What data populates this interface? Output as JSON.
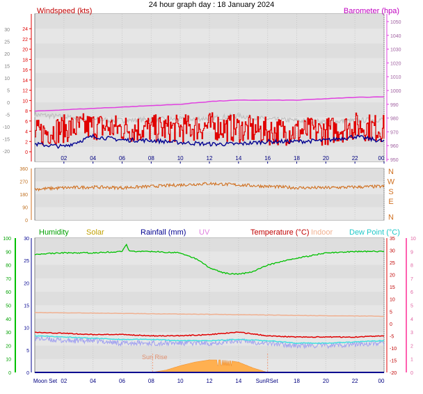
{
  "title": "24 hour graph day : 18 January 2024",
  "chart_data": [
    {
      "type": "line",
      "id": "wind-baro",
      "x_ticks": [
        "02",
        "04",
        "06",
        "08",
        "10",
        "12",
        "14",
        "16",
        "18",
        "20",
        "22",
        "00"
      ],
      "left_outer_ticks": [
        "30",
        "25",
        "20",
        "15",
        "10",
        "5",
        "0",
        "-5",
        "-10",
        "-15",
        "-20"
      ],
      "left_inner_label": "Windspeed (kts)",
      "left_inner_ticks": [
        "24",
        "22",
        "20",
        "18",
        "16",
        "14",
        "12",
        "10",
        "8",
        "6",
        "4",
        "2",
        "0"
      ],
      "left_inner_range": [
        0,
        25
      ],
      "right_label": "Barometer (hpa)",
      "right_ticks": [
        "1050",
        "1040",
        "1030",
        "1020",
        "1010",
        "1000",
        "990",
        "980",
        "970",
        "960",
        "950"
      ],
      "right_range": [
        945,
        1050
      ],
      "series": [
        {
          "name": "Windspeed (kts)",
          "color": "#e00000",
          "hours": [
            0,
            2,
            4,
            6,
            8,
            10,
            12,
            14,
            16,
            18,
            20,
            22,
            24
          ],
          "values": [
            3.5,
            4.5,
            5,
            4.5,
            4.5,
            4.5,
            5,
            4.5,
            4,
            4,
            4,
            5,
            4.5
          ]
        },
        {
          "color": "#000090",
          "hours": [
            0,
            2,
            4,
            6,
            8,
            10,
            12,
            14,
            16,
            18,
            20,
            22,
            24
          ],
          "values": [
            1.5,
            1,
            3,
            2.3,
            2.2,
            1.8,
            1.5,
            1.5,
            2,
            2,
            2.2,
            3,
            2
          ]
        },
        {
          "color": "#c0c0c0",
          "hours": [
            0,
            2,
            4,
            6,
            8,
            10,
            12,
            14,
            16,
            18,
            20,
            22,
            24
          ],
          "values": [
            -5,
            -6,
            -7,
            -7.5,
            -7,
            -7,
            -6.5,
            -5.5,
            -7,
            -7.5,
            -8,
            -7.5,
            -7
          ]
        },
        {
          "name": "Barometer (hpa)",
          "color": "#e040e0",
          "hours": [
            0,
            2,
            4,
            6,
            8,
            10,
            12,
            14,
            16,
            18,
            20,
            22,
            24
          ],
          "values": [
            985,
            986,
            987,
            988,
            989,
            990,
            992,
            993,
            993,
            993,
            994,
            995,
            995.5
          ]
        }
      ]
    },
    {
      "type": "line",
      "id": "direction",
      "x_ticks": [],
      "left_ticks": [
        "360",
        "270",
        "180",
        "90",
        "0"
      ],
      "right_ticks": [
        "N",
        "W",
        "S",
        "E",
        "N"
      ],
      "range": [
        0,
        360
      ],
      "series": [
        {
          "color": "#d07020",
          "hours": [
            0,
            2,
            4,
            6,
            8,
            10,
            12,
            14,
            16,
            18,
            20,
            22,
            24
          ],
          "values": [
            215,
            225,
            230,
            225,
            235,
            245,
            255,
            245,
            235,
            225,
            225,
            230,
            235
          ]
        }
      ]
    },
    {
      "type": "line",
      "id": "temp-humidity",
      "x_ticks": [
        "Moon Set",
        "02",
        "04",
        "06",
        "08",
        "10",
        "12",
        "14",
        "SunRSet",
        "18",
        "20",
        "22",
        "00"
      ],
      "humidity_label": "Humidity",
      "humidity_ticks": [
        "100",
        "90",
        "80",
        "70",
        "60",
        "50",
        "40",
        "30",
        "20",
        "10",
        "0"
      ],
      "rainfall_label": "Rainfall (mm)",
      "rainfall_ticks": [
        "30",
        "25",
        "20",
        "15",
        "10",
        "5",
        "0"
      ],
      "solar_label": "Solar",
      "uv_label": "UV",
      "temperature_label": "Temperature (°C)",
      "indoor_label": "Indoor",
      "dewpoint_label": "Dew Point (°C)",
      "temp_ticks": [
        "35",
        "30",
        "25",
        "20",
        "15",
        "10",
        "5",
        "0",
        "-5",
        "-10",
        "-15",
        "-20"
      ],
      "uv_ticks": [
        "10",
        "9",
        "8",
        "7",
        "6",
        "5",
        "4",
        "3",
        "2",
        "1",
        "0"
      ],
      "temp_range": [
        -20,
        35
      ],
      "sun_rise_label": "Sun Rise",
      "series": [
        {
          "name": "Humidity",
          "color": "#00c000",
          "hours": [
            0,
            2,
            4,
            6,
            6.3,
            6.5,
            8,
            10,
            11,
            12,
            13,
            14,
            15,
            16,
            18,
            20,
            22,
            24
          ],
          "values": [
            88,
            89,
            89,
            90,
            95,
            90,
            90,
            89,
            85,
            78,
            74,
            73,
            75,
            80,
            85,
            89,
            90,
            90
          ]
        },
        {
          "name": "Temperature (°C)",
          "color": "#e00000",
          "hours": [
            0,
            2,
            4,
            6,
            8,
            10,
            12,
            14,
            16,
            18,
            20,
            22,
            24
          ],
          "values": [
            -3.5,
            -4,
            -4.5,
            -4.5,
            -5,
            -5,
            -4.5,
            -3.5,
            -5,
            -5.5,
            -5.5,
            -5.5,
            -5
          ]
        },
        {
          "name": "Indoor",
          "color": "#f0b090",
          "hours": [
            0,
            4,
            8,
            12,
            16,
            20,
            24
          ],
          "values": [
            4.5,
            4.3,
            4,
            3.8,
            3.5,
            3.2,
            3
          ]
        },
        {
          "name": "Dew Point (°C)",
          "color": "#40e0e0",
          "hours": [
            0,
            2,
            4,
            6,
            8,
            10,
            12,
            14,
            16,
            18,
            20,
            22,
            24
          ],
          "values": [
            -5,
            -5.5,
            -6,
            -6.5,
            -6.5,
            -7,
            -7,
            -6.5,
            -7,
            -8,
            -8,
            -7.5,
            -7
          ]
        },
        {
          "color": "#a0a0f0",
          "hours": [
            0,
            2,
            4,
            6,
            8,
            10,
            12,
            14,
            16,
            18,
            20,
            22,
            24
          ],
          "values": [
            -6,
            -7,
            -7,
            -8,
            -8,
            -8,
            -8,
            -7,
            -8,
            -9,
            -9,
            -8.5,
            -8
          ]
        },
        {
          "name": "Solar",
          "color": "#ffb050",
          "hours": [
            8,
            9,
            10,
            11,
            12,
            13,
            14,
            15,
            16
          ],
          "values": [
            0,
            0.5,
            1.5,
            2.3,
            2.8,
            2.8,
            2.3,
            1,
            0
          ]
        },
        {
          "name": "Rainfall (mm)",
          "color": "#000090",
          "hours": [
            0,
            24
          ],
          "values": [
            0,
            0
          ]
        }
      ]
    }
  ]
}
